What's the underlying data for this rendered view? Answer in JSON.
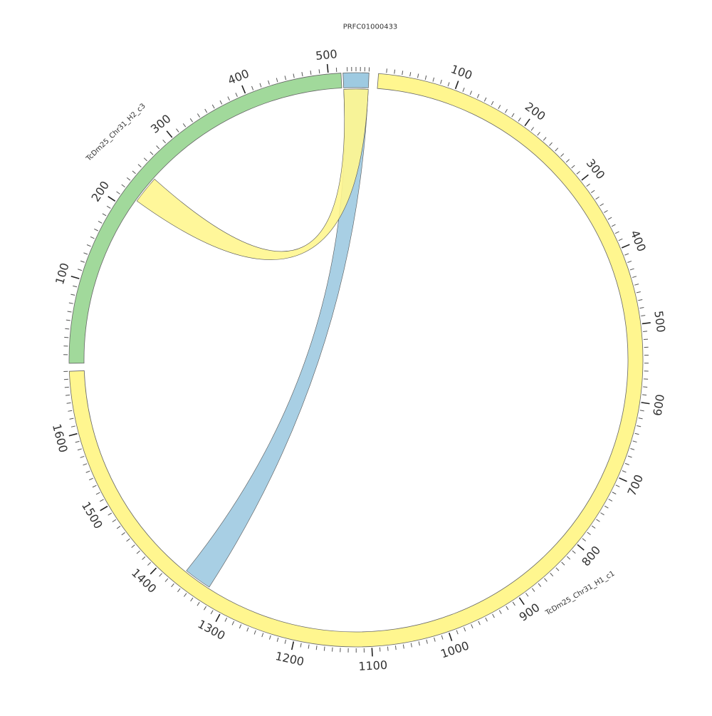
{
  "diagram": {
    "type": "circos",
    "segments": [
      {
        "id": "prfc",
        "name": "PRFC01000433",
        "color": "#9ecae1",
        "length": 30,
        "label_ticks": false
      },
      {
        "id": "h1",
        "name": "TcDm25_Chr31_H1_c1",
        "color": "#fff68f",
        "length": 1680,
        "label_ticks": true
      },
      {
        "id": "h2",
        "name": "TcDm25_Chr31_H2_c3",
        "color": "#a1d99b",
        "length": 515,
        "label_ticks": true
      }
    ],
    "tick_labels": {
      "h1": [
        "100",
        "200",
        "300",
        "400",
        "500",
        "600",
        "700",
        "800",
        "900",
        "1000",
        "1100",
        "1200",
        "1300",
        "1400",
        "1500",
        "1600"
      ],
      "h2": [
        "100",
        "200",
        "300",
        "400",
        "500"
      ]
    },
    "links": [
      {
        "from_segment": "prfc",
        "from_range": [
          0,
          30
        ],
        "to_segment": "h1",
        "to_range": [
          1330,
          1368
        ],
        "color": "#9ecae1"
      },
      {
        "from_segment": "prfc",
        "from_range": [
          0,
          30
        ],
        "to_segment": "h2",
        "to_range": [
          215,
          250
        ],
        "color": "#fff68f"
      }
    ]
  }
}
